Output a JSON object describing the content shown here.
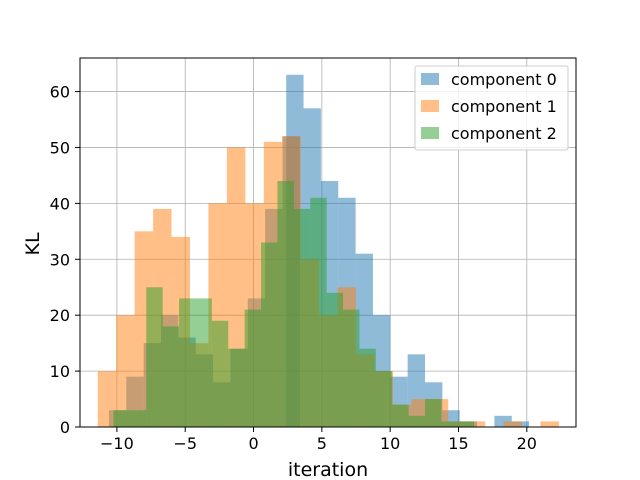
{
  "chart_data": {
    "type": "histogram",
    "title": "",
    "xlabel": "iteration",
    "ylabel": "KL",
    "xlim": [
      -12.7,
      23.6
    ],
    "ylim": [
      0,
      66
    ],
    "xticks": [
      -10,
      -5,
      0,
      5,
      10,
      15,
      20
    ],
    "xtick_labels": [
      "−10",
      "−5",
      "0",
      "5",
      "10",
      "15",
      "20"
    ],
    "yticks": [
      0,
      10,
      20,
      30,
      40,
      50,
      60
    ],
    "ytick_labels": [
      "0",
      "10",
      "20",
      "30",
      "40",
      "50",
      "60"
    ],
    "grid": true,
    "legend_position": "top-right",
    "alpha": 0.5,
    "series": [
      {
        "name": "component 0",
        "color": "#1f77b4",
        "bins": [
          [
            -10.58,
            -9.31,
            3
          ],
          [
            -9.31,
            -8.04,
            9
          ],
          [
            -8.04,
            -6.77,
            15
          ],
          [
            -6.77,
            -5.5,
            20
          ],
          [
            -5.5,
            -4.23,
            16
          ],
          [
            -4.23,
            -2.96,
            13
          ],
          [
            -2.96,
            -1.69,
            8
          ],
          [
            -1.69,
            -0.42,
            14
          ],
          [
            -0.42,
            0.85,
            23
          ],
          [
            0.85,
            2.12,
            39
          ],
          [
            2.12,
            3.39,
            52
          ],
          [
            2.39,
            3.66,
            63
          ],
          [
            3.66,
            4.93,
            57
          ],
          [
            4.93,
            6.2,
            44
          ],
          [
            6.2,
            7.47,
            41
          ],
          [
            7.47,
            8.74,
            31
          ],
          [
            8.74,
            10.01,
            20
          ],
          [
            10.01,
            11.28,
            9
          ],
          [
            11.28,
            12.55,
            13
          ],
          [
            12.55,
            13.82,
            8
          ],
          [
            13.82,
            15.09,
            3
          ],
          [
            15.09,
            16.36,
            1
          ],
          [
            16.36,
            17.63,
            0
          ],
          [
            17.63,
            18.9,
            2
          ],
          [
            18.9,
            20.17,
            1
          ]
        ]
      },
      {
        "name": "component 1",
        "color": "#ff7f0e",
        "bins": [
          [
            -11.4,
            -10.05,
            10
          ],
          [
            -10.05,
            -8.7,
            20
          ],
          [
            -8.7,
            -7.35,
            35
          ],
          [
            -7.35,
            -6.0,
            39
          ],
          [
            -6.0,
            -4.65,
            34
          ],
          [
            -4.65,
            -3.3,
            15
          ],
          [
            -3.3,
            -1.95,
            40
          ],
          [
            -1.95,
            -0.6,
            50
          ],
          [
            -0.6,
            0.75,
            40
          ],
          [
            0.75,
            2.1,
            51
          ],
          [
            2.1,
            3.45,
            52
          ],
          [
            3.45,
            4.8,
            30
          ],
          [
            4.8,
            6.15,
            20
          ],
          [
            6.15,
            7.5,
            25
          ],
          [
            7.5,
            8.85,
            13
          ],
          [
            8.85,
            10.2,
            10
          ],
          [
            10.2,
            11.55,
            4
          ],
          [
            11.55,
            12.9,
            5
          ],
          [
            12.9,
            14.25,
            5
          ],
          [
            14.25,
            15.6,
            1
          ],
          [
            15.6,
            16.95,
            1
          ],
          [
            16.95,
            18.3,
            0
          ],
          [
            18.3,
            19.65,
            1
          ],
          [
            19.65,
            21.0,
            0
          ],
          [
            21.0,
            22.35,
            1
          ]
        ]
      },
      {
        "name": "component 2",
        "color": "#2ca02c",
        "bins": [
          [
            -10.25,
            -9.05,
            3
          ],
          [
            -9.05,
            -7.85,
            3
          ],
          [
            -7.85,
            -6.65,
            25
          ],
          [
            -6.65,
            -5.45,
            18
          ],
          [
            -5.45,
            -4.25,
            23
          ],
          [
            -4.25,
            -3.05,
            23
          ],
          [
            -3.05,
            -1.85,
            19
          ],
          [
            -1.85,
            -0.65,
            14
          ],
          [
            -0.65,
            0.55,
            21
          ],
          [
            0.55,
            1.75,
            33
          ],
          [
            1.75,
            2.95,
            44
          ],
          [
            2.95,
            4.15,
            39
          ],
          [
            4.15,
            5.35,
            41
          ],
          [
            5.35,
            6.55,
            24
          ],
          [
            6.55,
            7.75,
            21
          ],
          [
            7.75,
            8.95,
            14
          ],
          [
            8.95,
            10.15,
            10
          ],
          [
            10.15,
            11.35,
            4
          ],
          [
            11.35,
            12.55,
            2
          ],
          [
            12.55,
            13.75,
            5
          ],
          [
            13.75,
            14.95,
            1
          ],
          [
            14.95,
            16.15,
            1
          ]
        ]
      }
    ]
  }
}
